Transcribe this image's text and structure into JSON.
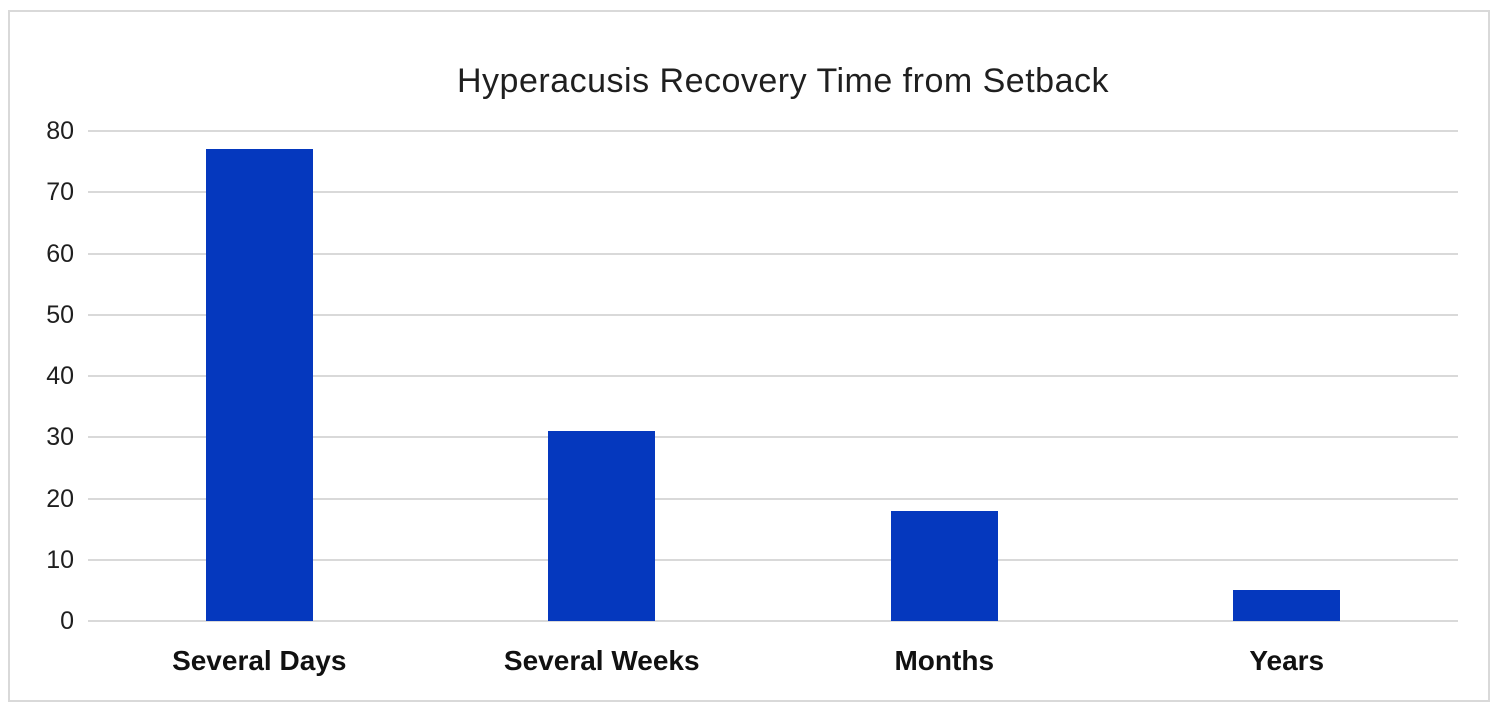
{
  "chart_data": {
    "type": "bar",
    "title": "Hyperacusis Recovery Time from Setback",
    "categories": [
      "Several Days",
      "Several Weeks",
      "Months",
      "Years"
    ],
    "values": [
      77,
      31,
      18,
      5
    ],
    "xlabel": "",
    "ylabel": "",
    "ylim": [
      0,
      80
    ],
    "ytick_step": 10,
    "ytick_labels": [
      "0",
      "10",
      "20",
      "30",
      "40",
      "50",
      "60",
      "70",
      "80"
    ],
    "grid": true,
    "legend": false,
    "legend_position": "none",
    "bar_color": "#0538be",
    "gridline_color": "#d9d9d9",
    "frame_border_color": "#d9d9d9",
    "text_color": "#1f1f1f"
  }
}
